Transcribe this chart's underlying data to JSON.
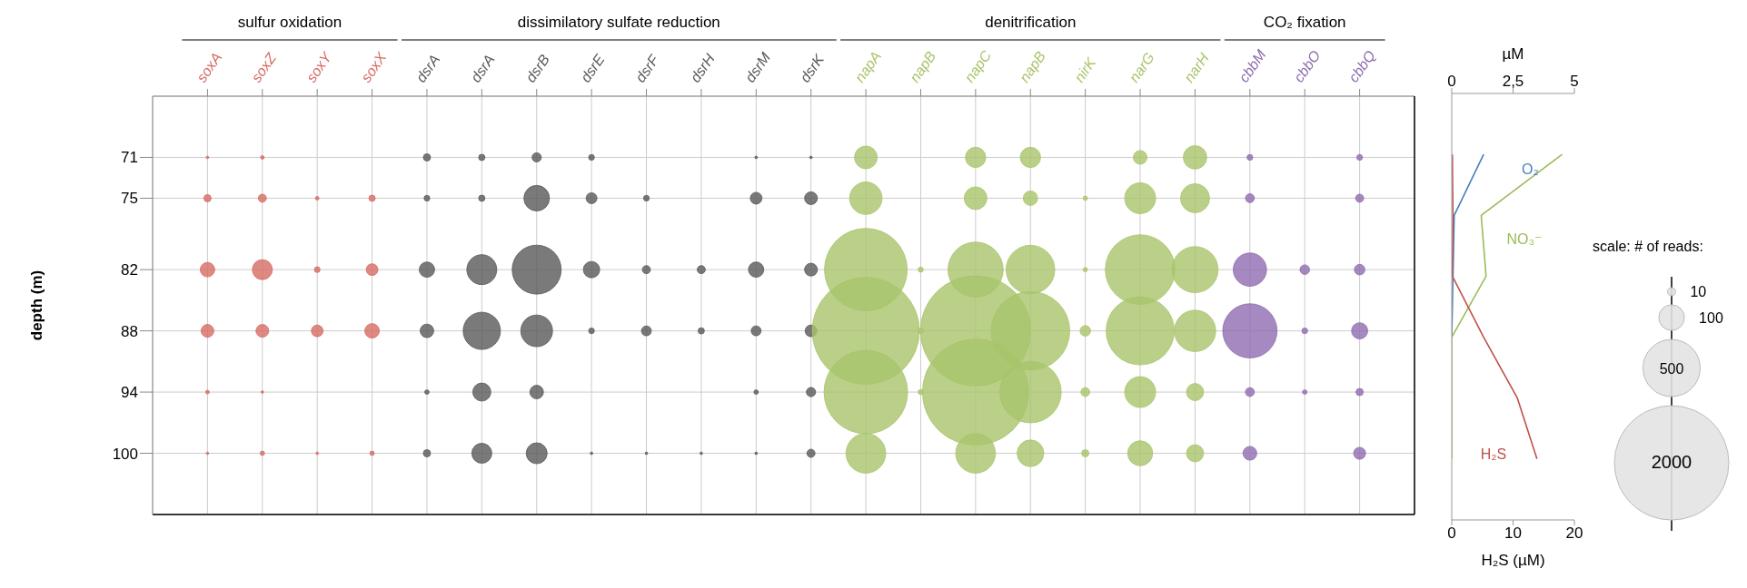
{
  "chart_data": [
    {
      "type": "bubble",
      "ylabel": "depth (m)",
      "annotations": [
        "sulfur oxidation",
        "dissimilatory sulfate reduction",
        "denitrification",
        "CO₂ fixation"
      ],
      "categories": [
        "soxA",
        "soxZ",
        "soxY",
        "soxX",
        "dsrA",
        "dsrA",
        "dsrB",
        "dsrE",
        "dsrF",
        "dsrH",
        "dsrM",
        "dsrK",
        "napA",
        "napB",
        "napC",
        "napB",
        "nirK",
        "narG",
        "narH",
        "cbbM",
        "cbbO",
        "cbbQ"
      ],
      "ylim": [
        106,
        65
      ],
      "yticks": [
        71,
        75,
        82,
        88,
        94,
        100
      ],
      "series": [
        {
          "colors": [
            "#d66b63",
            "#d66b63",
            null,
            null,
            "#595959",
            "#595959",
            "#595959",
            "#595959",
            null,
            null,
            "#595959",
            "#595959",
            "#a9c46c",
            null,
            "#a9c46c",
            "#a9c46c",
            null,
            "#a9c46c",
            "#a9c46c",
            "#8e6bb0",
            null,
            "#8e6bb0"
          ],
          "values": [
            71,
            71,
            null,
            null,
            71,
            71,
            71,
            71,
            null,
            null,
            71,
            71,
            71,
            null,
            71,
            71,
            null,
            71,
            71,
            71,
            null,
            71
          ],
          "sizes": [
            1,
            2,
            null,
            null,
            8,
            6,
            13,
            5,
            null,
            null,
            1,
            1,
            79,
            null,
            63,
            63,
            null,
            29,
            84,
            5,
            null,
            5
          ]
        },
        {
          "colors": [
            "#d66b63",
            "#d66b63",
            "#d66b63",
            "#d66b63",
            "#595959",
            "#595959",
            "#595959",
            "#595959",
            "#595959",
            null,
            "#595959",
            "#595959",
            "#a9c46c",
            null,
            "#a9c46c",
            "#a9c46c",
            "#a9c46c",
            "#a9c46c",
            "#a9c46c",
            "#8e6bb0",
            null,
            "#8e6bb0"
          ],
          "values": [
            75,
            75,
            75,
            75,
            75,
            75,
            75,
            75,
            75,
            null,
            75,
            75,
            75,
            null,
            75,
            75,
            75,
            75,
            75,
            75,
            null,
            75
          ],
          "sizes": [
            8,
            10,
            2,
            6,
            5,
            6,
            100,
            18,
            5,
            null,
            21,
            25,
            161,
            null,
            79,
            32,
            3,
            146,
            129,
            12,
            null,
            10
          ]
        },
        {
          "colors": [
            "#d66b63",
            "#d66b63",
            "#d66b63",
            "#d66b63",
            "#595959",
            "#595959",
            "#595959",
            "#595959",
            "#595959",
            "#595959",
            "#595959",
            "#595959",
            "#a9c46c",
            "#a9c46c",
            "#a9c46c",
            "#a9c46c",
            "#a9c46c",
            "#a9c46c",
            "#a9c46c",
            "#8e6bb0",
            "#8e6bb0",
            "#8e6bb0"
          ],
          "values": [
            82,
            82,
            82,
            82,
            82,
            82,
            82,
            82,
            82,
            82,
            82,
            82,
            82,
            82,
            82,
            82,
            82,
            82,
            82,
            82,
            82,
            82
          ],
          "sizes": [
            32,
            61,
            5,
            21,
            36,
            137,
            367,
            41,
            10,
            10,
            36,
            25,
            1043,
            4,
            465,
            362,
            3,
            743,
            325,
            169,
            14,
            17
          ]
        },
        {
          "colors": [
            "#d66b63",
            "#d66b63",
            "#d66b63",
            "#d66b63",
            "#595959",
            "#595959",
            "#595959",
            "#595959",
            "#595959",
            "#595959",
            "#595959",
            "#595959",
            "#a9c46c",
            "#a9c46c",
            "#a9c46c",
            "#a9c46c",
            "#a9c46c",
            "#a9c46c",
            "#a9c46c",
            "#8e6bb0",
            "#8e6bb0",
            "#8e6bb0"
          ],
          "values": [
            88,
            88,
            88,
            88,
            88,
            88,
            88,
            88,
            88,
            88,
            88,
            88,
            88,
            88,
            88,
            88,
            88,
            88,
            88,
            88,
            88,
            88
          ],
          "sizes": [
            25,
            25,
            21,
            32,
            28,
            212,
            154,
            5,
            15,
            6,
            15,
            21,
            1754,
            5,
            1857,
            945,
            17,
            709,
            262,
            450,
            5,
            40
          ]
        },
        {
          "colors": [
            "#d66b63",
            "#d66b63",
            null,
            null,
            "#595959",
            "#595959",
            "#595959",
            null,
            null,
            null,
            "#595959",
            "#595959",
            "#a9c46c",
            "#a9c46c",
            "#a9c46c",
            "#a9c46c",
            "#a9c46c",
            "#a9c46c",
            "#a9c46c",
            "#8e6bb0",
            "#8e6bb0",
            "#8e6bb0"
          ],
          "values": [
            94,
            94,
            null,
            null,
            94,
            94,
            94,
            null,
            null,
            null,
            94,
            94,
            94,
            94,
            94,
            94,
            94,
            94,
            94,
            94,
            94,
            94
          ],
          "sizes": [
            2,
            1,
            null,
            null,
            3,
            50,
            28,
            null,
            null,
            null,
            3,
            13,
            1066,
            4,
            1724,
            579,
            12,
            146,
            45,
            12,
            3,
            8
          ]
        },
        {
          "colors": [
            "#d66b63",
            "#d66b63",
            "#d66b63",
            "#d66b63",
            "#595959",
            "#595959",
            "#595959",
            "#595959",
            "#595959",
            "#595959",
            "#595959",
            "#595959",
            "#a9c46c",
            null,
            "#a9c46c",
            "#a9c46c",
            "#a9c46c",
            "#a9c46c",
            "#a9c46c",
            "#8e6bb0",
            null,
            "#8e6bb0"
          ],
          "values": [
            100,
            100,
            100,
            100,
            100,
            100,
            100,
            100,
            100,
            100,
            100,
            100,
            100,
            null,
            100,
            100,
            100,
            100,
            100,
            100,
            null,
            100
          ],
          "sizes": [
            1,
            3,
            1,
            3,
            8,
            61,
            67,
            1,
            1,
            1,
            1,
            10,
            241,
            null,
            241,
            109,
            8,
            96,
            45,
            29,
            null,
            22
          ]
        }
      ],
      "size_legend": [
        10,
        100,
        500,
        2000
      ],
      "legend_title": "scale: # of reads:",
      "grid": true
    },
    {
      "type": "line",
      "orientation": "horizontal",
      "categories": [
        null,
        null,
        null,
        null,
        null,
        null
      ],
      "tick_labels": "x",
      "xlim": [
        0,
        20
      ],
      "xticks": [
        0,
        10,
        20
      ],
      "xlabel": "H₂S (µM)",
      "x2lim": [
        0,
        5
      ],
      "x2ticks": [
        0,
        {
          "value": 2.5,
          "label": "2,5"
        },
        5
      ],
      "x2label": "µM",
      "series": [
        {
          "name": "O₂",
          "color": "#4a7ebb",
          "axis": "x2",
          "values": [
            1.3,
            0.1,
            0.05,
            0,
            null,
            null
          ]
        },
        {
          "name": "NO₃⁻",
          "color": "#9bbb59",
          "axis": "x2",
          "values": [
            4.5,
            1.2,
            1.4,
            0,
            0,
            0
          ]
        },
        {
          "name": "H₂S",
          "color": "#c0504d",
          "values": [
            0.1,
            0.2,
            0.1,
            5.2,
            10.7,
            13.9
          ]
        }
      ]
    }
  ]
}
